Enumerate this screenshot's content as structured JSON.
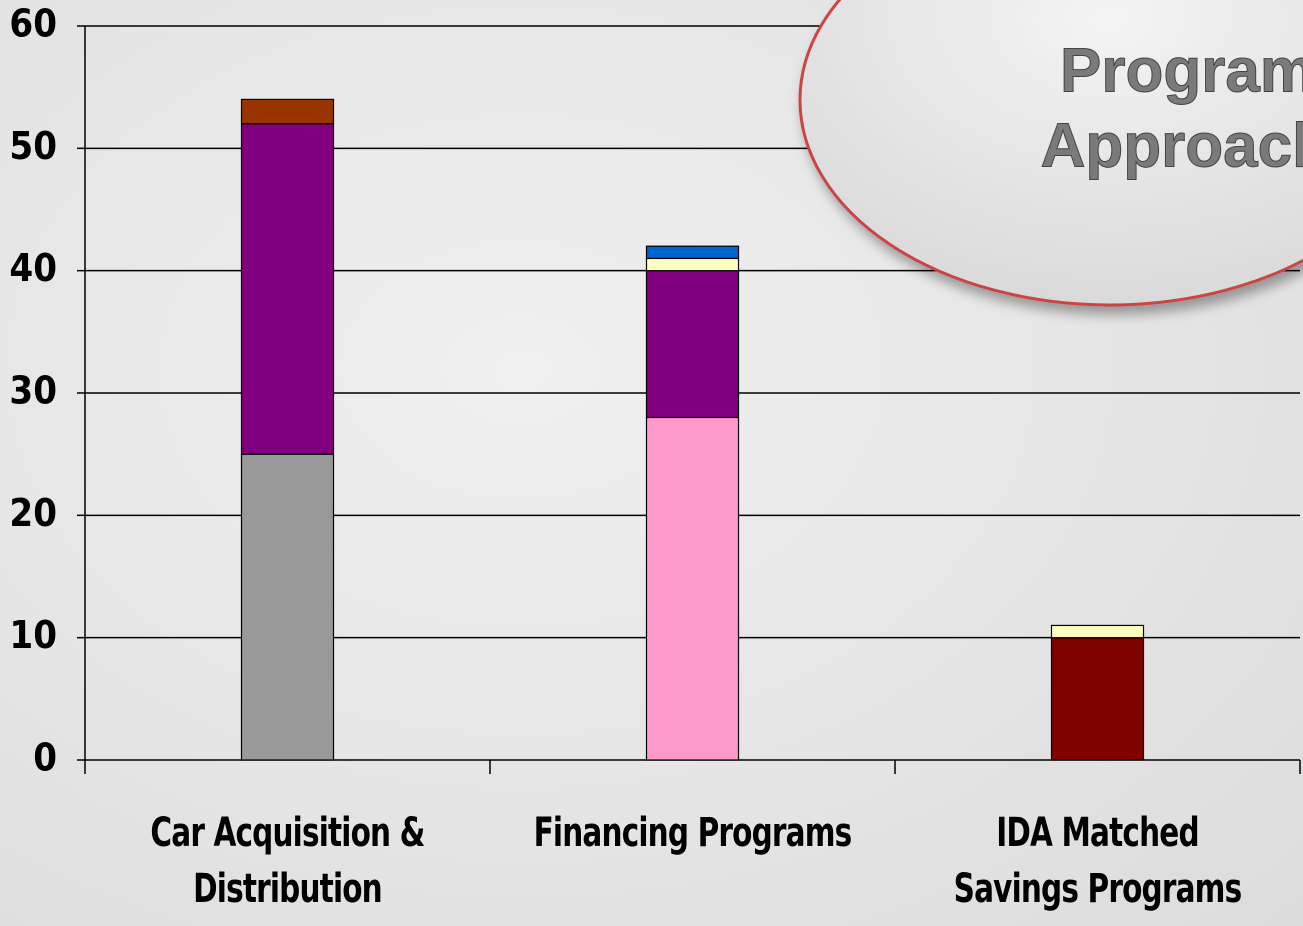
{
  "chart_data": {
    "type": "stacked_bar",
    "annotations": [
      "Program",
      "Approach"
    ],
    "categories": [
      "Car Acquisition & Distribution",
      "Financing Programs",
      "IDA Matched Savings Programs"
    ],
    "series": [
      {
        "color": "#999999",
        "values": [
          25,
          null,
          null
        ]
      },
      {
        "color": "#ff99cc",
        "values": [
          null,
          28,
          null
        ]
      },
      {
        "color": "#800000",
        "values": [
          null,
          null,
          10
        ]
      },
      {
        "color": "#800080",
        "values": [
          27,
          12,
          null
        ]
      },
      {
        "color": "#ffffc0",
        "values": [
          null,
          1,
          1
        ]
      },
      {
        "color": "#993300",
        "values": [
          2,
          null,
          null
        ]
      },
      {
        "color": "#0066cc",
        "values": [
          null,
          1,
          null
        ]
      }
    ],
    "ylim": [
      0,
      60
    ],
    "yticks": [
      0,
      10,
      20,
      30,
      40,
      50,
      60
    ],
    "grid": true
  }
}
